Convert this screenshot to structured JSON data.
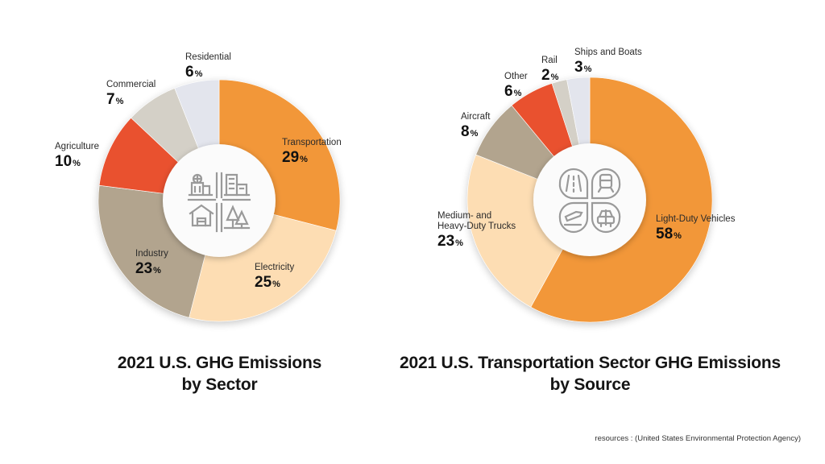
{
  "chart_data": [
    {
      "type": "pie",
      "variant": "donut",
      "title": "2021 U.S. GHG Emissions by Sector",
      "title_lines": [
        "2021 U.S. GHG Emissions",
        "by Sector"
      ],
      "center_icon": "buildings-house-trees-icon",
      "direction": "clockwise-from-top",
      "unit": "%",
      "slices": [
        {
          "label": "Transportation",
          "value": 29,
          "color": "#F29739"
        },
        {
          "label": "Electricity",
          "value": 25,
          "color": "#FDDDB3"
        },
        {
          "label": "Industry",
          "value": 23,
          "color": "#B2A48E"
        },
        {
          "label": "Agriculture",
          "value": 10,
          "color": "#E9512F"
        },
        {
          "label": "Commercial",
          "value": 7,
          "color": "#D4D0C7"
        },
        {
          "label": "Residential",
          "value": 6,
          "color": "#E3E5ED"
        }
      ]
    },
    {
      "type": "pie",
      "variant": "donut",
      "title": "2021 U.S. Transportation Sector GHG Emissions by Source",
      "title_lines": [
        "2021 U.S. Transportation Sector GHG Emissions",
        "by Source"
      ],
      "center_icon": "road-train-plane-car-icon",
      "direction": "clockwise-from-top",
      "unit": "%",
      "slices": [
        {
          "label": "Light-Duty Vehicles",
          "value": 58,
          "color": "#F29739"
        },
        {
          "label": "Medium- and Heavy-Duty Trucks",
          "label_lines": [
            "Medium- and",
            "Heavy-Duty Trucks"
          ],
          "value": 23,
          "color": "#FDDDB3"
        },
        {
          "label": "Aircraft",
          "value": 8,
          "color": "#B2A48E"
        },
        {
          "label": "Other",
          "value": 6,
          "color": "#E9512F"
        },
        {
          "label": "Rail",
          "value": 2,
          "color": "#D4D0C7"
        },
        {
          "label": "Ships and Boats",
          "value": 3,
          "color": "#E3E5ED"
        }
      ]
    }
  ],
  "source_note": "resources : (United States Environmental Protection Agency)"
}
